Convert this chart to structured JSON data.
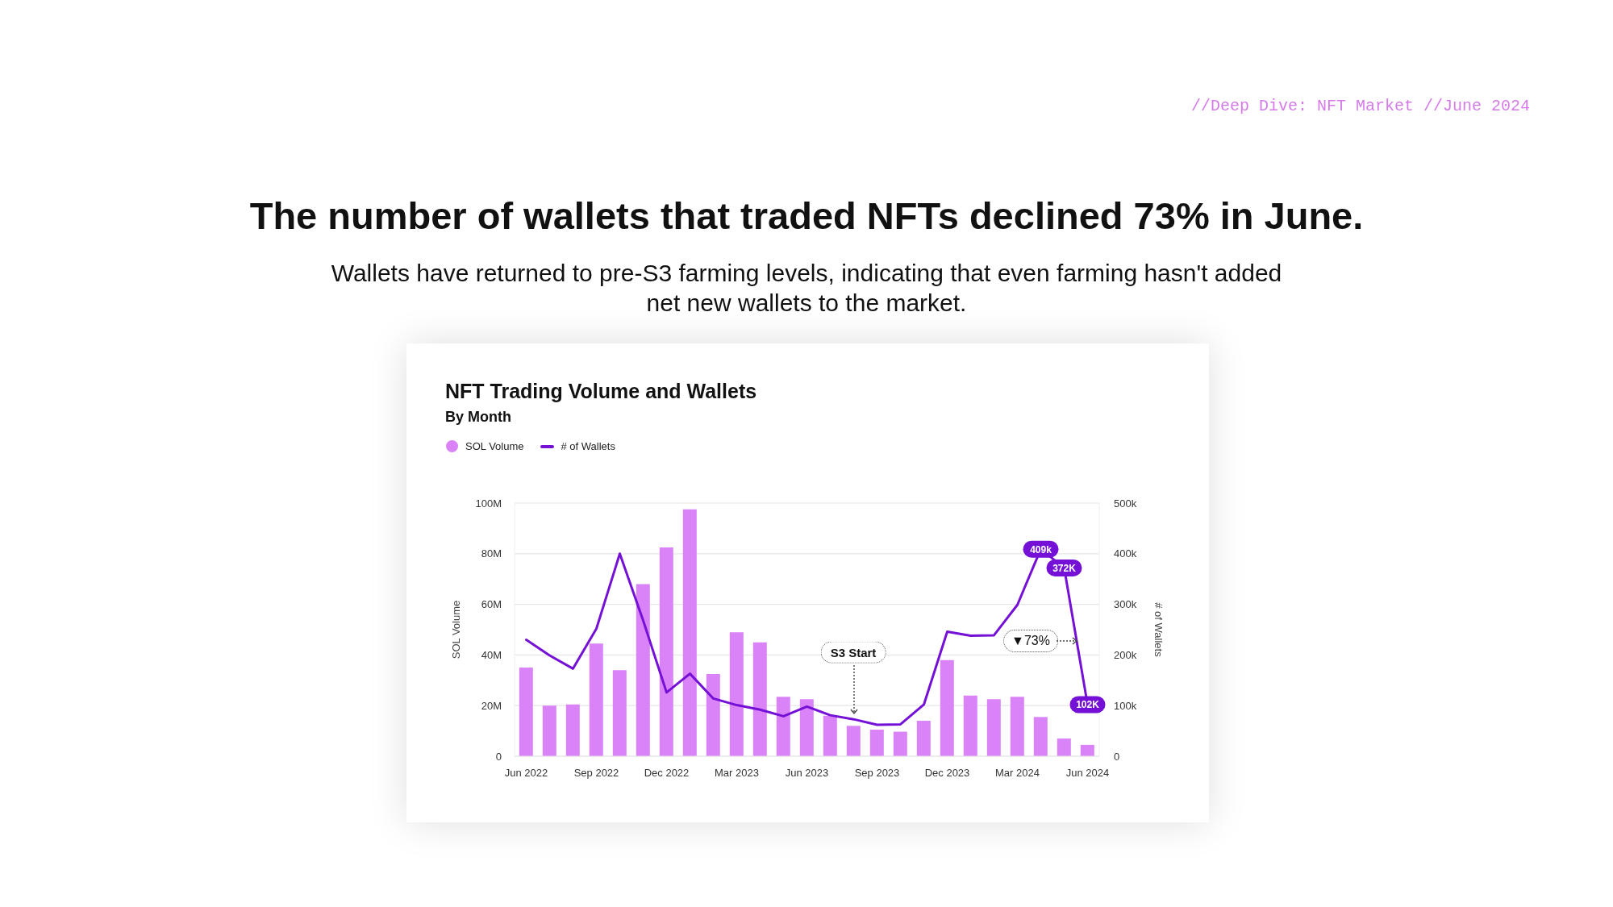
{
  "chart_data": {
    "type": "bar",
    "title": "NFT Trading Volume and Wallets",
    "subtitle": "By Month",
    "ylabel": "SOL Volume",
    "y2label": "# of Wallets",
    "annotations": [
      "//Deep Dive: NFT Market //June 2024",
      "The number of wallets that traded NFTs declined 73% in June.",
      "Wallets have returned to pre-S3 farming levels, indicating that even farming hasn't added net new wallets to the market.",
      "S3 Start",
      "▼73%"
    ],
    "categories": [
      "Jun 2022",
      null,
      null,
      "Sep 2022",
      null,
      null,
      "Dec 2022",
      null,
      null,
      "Mar 2023",
      null,
      null,
      "Jun 2023",
      null,
      null,
      "Sep 2023",
      null,
      null,
      "Dec 2023",
      null,
      null,
      "Mar 2024",
      null,
      null,
      "Jun 2024"
    ],
    "series": [
      {
        "name": "SOL Volume",
        "color": "#da82f7",
        "values": [
          35000000,
          20000000,
          20500000,
          44500000,
          34000000,
          68000000,
          82500000,
          97500000,
          32500000,
          49000000,
          45000000,
          23500000,
          22500000,
          16000000,
          12000000,
          10500000,
          9700000,
          14000000,
          38000000,
          24000000,
          22500000,
          23500000,
          15500000,
          7000000,
          4500000
        ]
      },
      {
        "name": "# of Wallets",
        "type": "line",
        "axis": "y2",
        "color": "#7510d6",
        "values": [
          230000,
          199000,
          173000,
          252000,
          400000,
          268000,
          126000,
          163000,
          114000,
          101000,
          92000,
          79000,
          98000,
          81000,
          73000,
          62000,
          63000,
          102000,
          246000,
          238000,
          239000,
          299000,
          409000,
          372000,
          102000
        ],
        "value_labels": [
          null,
          null,
          null,
          null,
          null,
          null,
          null,
          null,
          null,
          null,
          null,
          null,
          null,
          null,
          null,
          null,
          null,
          null,
          null,
          null,
          null,
          null,
          "409k",
          "372K",
          "102K"
        ]
      }
    ],
    "ylim": [
      0,
      100000000
    ],
    "yticks": [
      0,
      {
        "value": 20000000,
        "label": "20M"
      },
      {
        "value": 40000000,
        "label": "40M"
      },
      {
        "value": 60000000,
        "label": "60M"
      },
      {
        "value": 80000000,
        "label": "80M"
      },
      {
        "value": 100000000,
        "label": "100M"
      }
    ],
    "y2lim": [
      0,
      500000
    ],
    "y2ticks": [
      0,
      {
        "value": 100000,
        "label": "100k"
      },
      {
        "value": 200000,
        "label": "200k"
      },
      {
        "value": 300000,
        "label": "300k"
      },
      {
        "value": 400000,
        "label": "400k"
      },
      {
        "value": 500000,
        "label": "500k"
      }
    ],
    "grid": "y",
    "legend": "top left",
    "marker": "none"
  }
}
